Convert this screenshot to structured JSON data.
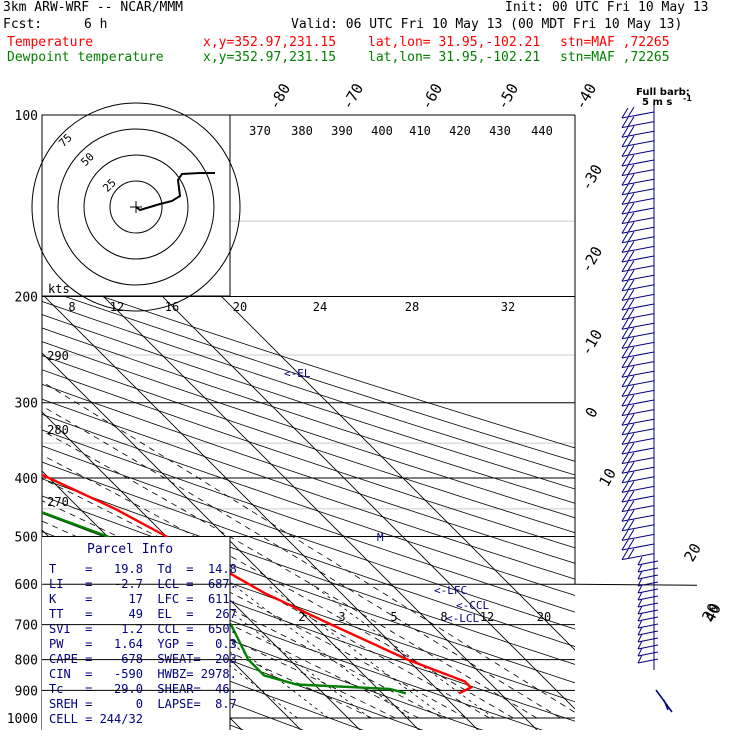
{
  "header": {
    "model": "3km ARW-WRF -- NCAR/MMM",
    "init": "Init: 00 UTC Fri 10 May 13",
    "fcst_label": "Fcst:",
    "fcst_value": "6 h",
    "valid": "Valid: 06 UTC Fri 10 May 13 (00 MDT Fri 10 May 13)",
    "temp_label": "Temperature",
    "dew_label": "Dewpoint temperature",
    "xy": "x,y=352.97,231.15",
    "latlon": "lat,lon= 31.95,-102.21",
    "stn": "stn=MAF ,72265",
    "full_barb": "Full barb:",
    "full_barb_units": "5 m s",
    "full_barb_exp": "-1"
  },
  "colors": {
    "temperature": "#ff0000",
    "dewpoint": "#008000",
    "info_text": "#000080",
    "barb": "#000080",
    "grid": "#000000"
  },
  "parcel_info": {
    "title": "Parcel Info",
    "lines": [
      "T    =   19.8  Td  =  14.8",
      "LI   =   -2.7  LCL =  687.",
      "K    =     17  LFC =  611.",
      "TT   =     49  EL  =   267",
      "SVI  =    1.2  CCL =  650.",
      "PW   =   1.64  YGP =   0.3",
      "CAPE =    678  SWEAT=  203",
      "CIN  =   -590  HWBZ= 2978.",
      "Tc   =   29.0  SHEAR=  46.",
      "SREH =      0  LAPSE=  8.7",
      "CELL = 244/32"
    ]
  },
  "annotations": {
    "el": "<-EL",
    "lfc": "<-LFC",
    "ccl": "<-CCL",
    "lcl": "<-LCL",
    "m": "M"
  },
  "hodograph": {
    "units": "kts",
    "ring_labels": [
      "25",
      "50",
      "75"
    ]
  },
  "chart_data": {
    "type": "line",
    "subtype": "skew-T log-P sounding",
    "y_axis": "Pressure (hPa)",
    "y_scale": "log",
    "y_ticks": [
      "100",
      "200",
      "300",
      "400",
      "500",
      "600",
      "700",
      "800",
      "900",
      "1000"
    ],
    "isotherm_labels": [
      "-80",
      "-70",
      "-60",
      "-50",
      "-40",
      "-30",
      "-20",
      "-10",
      "0",
      "10",
      "20",
      "30",
      "40"
    ],
    "dry_adiabat_labels": [
      "370",
      "380",
      "390",
      "400",
      "410",
      "420",
      "430",
      "440"
    ],
    "dry_adiabat_left_labels": [
      "290",
      "280",
      "270"
    ],
    "mixing_ratio_labels": [
      "8",
      "12",
      "16",
      "20",
      "24",
      "28",
      "32"
    ],
    "mixing_ratio_low_labels": [
      "2",
      "3",
      "5",
      "8",
      "12",
      "20"
    ],
    "series": [
      {
        "name": "Temperature",
        "points": [
          {
            "p": 910,
            "t": 23
          },
          {
            "p": 890,
            "t": 26
          },
          {
            "p": 870,
            "t": 26
          },
          {
            "p": 800,
            "t": 20
          },
          {
            "p": 700,
            "t": 13
          },
          {
            "p": 620,
            "t": 7
          },
          {
            "p": 550,
            "t": 3
          },
          {
            "p": 500,
            "t": 0
          },
          {
            "p": 450,
            "t": -4
          },
          {
            "p": 400,
            "t": -10
          },
          {
            "p": 350,
            "t": -17
          },
          {
            "p": 300,
            "t": -26
          },
          {
            "p": 250,
            "t": -38
          },
          {
            "p": 200,
            "t": -49
          },
          {
            "p": 170,
            "t": -55
          },
          {
            "p": 150,
            "t": -58
          },
          {
            "p": 130,
            "t": -60
          },
          {
            "p": 115,
            "t": -60
          },
          {
            "p": 100,
            "t": -60
          }
        ]
      },
      {
        "name": "Dewpoint temperature",
        "points": [
          {
            "p": 910,
            "t": 14
          },
          {
            "p": 895,
            "t": 12
          },
          {
            "p": 880,
            "t": -3
          },
          {
            "p": 850,
            "t": -7
          },
          {
            "p": 800,
            "t": -7
          },
          {
            "p": 700,
            "t": -4
          },
          {
            "p": 600,
            "t": -5
          },
          {
            "p": 500,
            "t": -10
          },
          {
            "p": 450,
            "t": -18
          },
          {
            "p": 400,
            "t": -24
          },
          {
            "p": 350,
            "t": -33
          },
          {
            "p": 300,
            "t": -48
          },
          {
            "p": 260,
            "t": -62
          },
          {
            "p": 240,
            "t": -68
          },
          {
            "p": 200,
            "t": -72
          },
          {
            "p": 170,
            "t": -78
          },
          {
            "p": 150,
            "t": -84
          },
          {
            "p": 130,
            "t": -88
          },
          {
            "p": 115,
            "t": -84
          },
          {
            "p": 100,
            "t": -80
          }
        ]
      }
    ],
    "wind_barbs_present": true,
    "grid": true
  }
}
